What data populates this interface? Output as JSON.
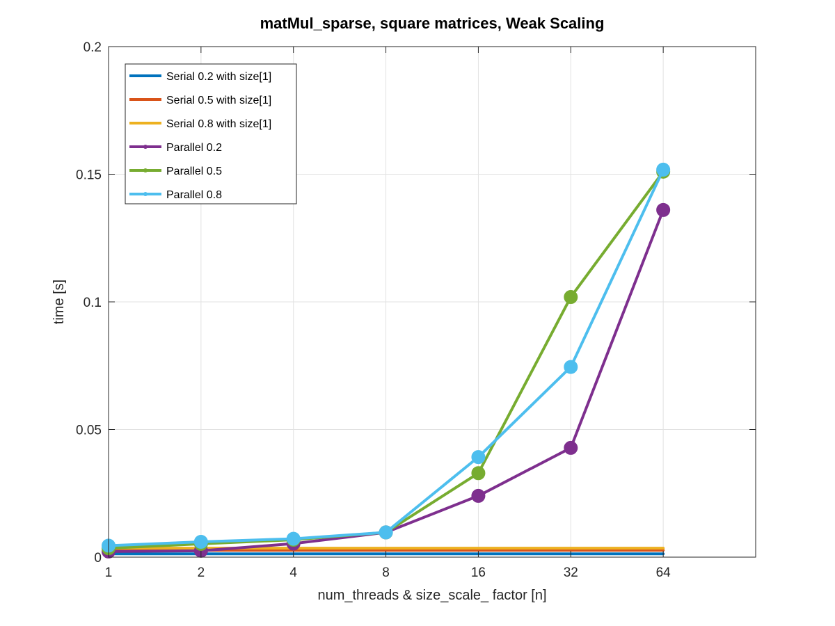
{
  "chart_data": {
    "type": "line",
    "title": "matMul_sparse, square matrices, Weak Scaling",
    "xlabel": "num_threads & size_scale_ factor [n]",
    "ylabel": "time [s]",
    "x_scale": "log2",
    "x": [
      1,
      2,
      4,
      8,
      16,
      32,
      64
    ],
    "xticks": [
      "1",
      "2",
      "4",
      "8",
      "16",
      "32",
      "64"
    ],
    "xlim": [
      1,
      128
    ],
    "ylim": [
      0,
      0.2
    ],
    "yticks": [
      "0",
      "0.05",
      "0.1",
      "0.15",
      "0.2"
    ],
    "grid": true,
    "legend_position": "top-left",
    "series": [
      {
        "name": "Serial 0.2 with size[1]",
        "color": "#0072BD",
        "style": "line",
        "values": [
          0.0013,
          0.0013,
          0.0013,
          0.0013,
          0.0013,
          0.0013,
          0.0013
        ]
      },
      {
        "name": "Serial 0.5 with size[1]",
        "color": "#D95319",
        "style": "line",
        "values": [
          0.0027,
          0.0027,
          0.0027,
          0.0027,
          0.0027,
          0.0027,
          0.0027
        ]
      },
      {
        "name": "Serial 0.8 with size[1]",
        "color": "#EDB120",
        "style": "line",
        "values": [
          0.0035,
          0.0035,
          0.0035,
          0.0035,
          0.0035,
          0.0035,
          0.0035
        ]
      },
      {
        "name": "Parallel 0.2",
        "color": "#7E2F8E",
        "style": "line-marker",
        "values": [
          0.0022,
          0.0025,
          0.0053,
          0.0097,
          0.024,
          0.0428,
          0.136
        ]
      },
      {
        "name": "Parallel 0.5",
        "color": "#77AC30",
        "style": "line-marker",
        "values": [
          0.0035,
          0.0052,
          0.0068,
          0.0097,
          0.0329,
          0.1019,
          0.151
        ]
      },
      {
        "name": "Parallel 0.8",
        "color": "#4DBEEE",
        "style": "line-marker",
        "values": [
          0.0045,
          0.006,
          0.0072,
          0.0097,
          0.0392,
          0.0745,
          0.1518
        ]
      }
    ]
  }
}
